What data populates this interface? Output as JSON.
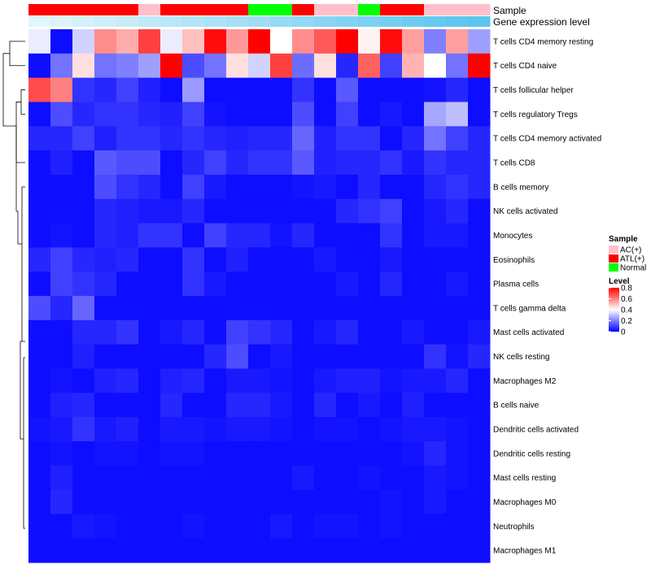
{
  "chart_data": {
    "type": "heatmap",
    "title": "",
    "annotation_rows": [
      "Sample",
      "Gene expression level"
    ],
    "rows": [
      "T cells CD4 memory resting",
      "T cells CD4 naive",
      "T cells follicular helper",
      "T cells regulatory  Tregs",
      "T cells CD4 memory activated",
      "T cells CD8",
      "B cells memory",
      "NK cells activated",
      "Monocytes",
      "Eosinophils",
      "Plasma cells",
      "T cells gamma delta",
      "Mast cells activated",
      "NK cells resting",
      "Macrophages M2",
      "B cells naive",
      "Dendritic cells activated",
      "Dendritic cells resting",
      "Mast cells resting",
      "Macrophages M0",
      "Neutrophils",
      "Macrophages M1"
    ],
    "sample_groups": [
      "ATL(+)",
      "ATL(+)",
      "ATL(+)",
      "ATL(+)",
      "ATL(+)",
      "AC(+)",
      "ATL(+)",
      "ATL(+)",
      "ATL(+)",
      "ATL(+)",
      "Normal",
      "Normal",
      "ATL(+)",
      "AC(+)",
      "AC(+)",
      "Normal",
      "ATL(+)",
      "ATL(+)",
      "AC(+)",
      "AC(+)",
      "AC(+)"
    ],
    "gene_expression_level": [
      0.02,
      0.07,
      0.12,
      0.17,
      0.22,
      0.27,
      0.32,
      0.37,
      0.42,
      0.47,
      0.52,
      0.57,
      0.62,
      0.67,
      0.72,
      0.77,
      0.82,
      0.87,
      0.92,
      0.96,
      1.0
    ],
    "values": [
      [
        0.37,
        0.02,
        0.33,
        0.58,
        0.53,
        0.7,
        0.37,
        0.5,
        0.78,
        0.56,
        0.8,
        0.4,
        0.58,
        0.66,
        0.8,
        0.42,
        0.78,
        0.55,
        0.2,
        0.55,
        0.25
      ],
      [
        0.02,
        0.18,
        0.45,
        0.18,
        0.2,
        0.25,
        0.8,
        0.12,
        0.18,
        0.45,
        0.33,
        0.7,
        0.17,
        0.45,
        0.06,
        0.65,
        0.1,
        0.52,
        0.4,
        0.18,
        0.8
      ],
      [
        0.68,
        0.6,
        0.08,
        0.06,
        0.1,
        0.05,
        0.02,
        0.24,
        0.02,
        0.02,
        0.02,
        0.02,
        0.08,
        0.02,
        0.14,
        0.02,
        0.02,
        0.02,
        0.03,
        0.06,
        0.02
      ],
      [
        0.02,
        0.12,
        0.06,
        0.08,
        0.08,
        0.06,
        0.05,
        0.1,
        0.03,
        0.02,
        0.02,
        0.02,
        0.12,
        0.02,
        0.1,
        0.02,
        0.04,
        0.02,
        0.26,
        0.3,
        0.02
      ],
      [
        0.06,
        0.06,
        0.1,
        0.05,
        0.08,
        0.08,
        0.06,
        0.08,
        0.06,
        0.05,
        0.06,
        0.06,
        0.16,
        0.05,
        0.08,
        0.08,
        0.02,
        0.06,
        0.18,
        0.1,
        0.06
      ],
      [
        0.02,
        0.05,
        0.02,
        0.14,
        0.12,
        0.12,
        0.02,
        0.06,
        0.1,
        0.06,
        0.08,
        0.08,
        0.14,
        0.05,
        0.06,
        0.06,
        0.08,
        0.04,
        0.08,
        0.06,
        0.06
      ],
      [
        0.02,
        0.02,
        0.02,
        0.12,
        0.08,
        0.06,
        0.02,
        0.1,
        0.04,
        0.02,
        0.02,
        0.02,
        0.03,
        0.04,
        0.02,
        0.06,
        0.02,
        0.02,
        0.06,
        0.08,
        0.06
      ],
      [
        0.02,
        0.02,
        0.02,
        0.06,
        0.05,
        0.04,
        0.04,
        0.06,
        0.02,
        0.02,
        0.02,
        0.02,
        0.02,
        0.02,
        0.06,
        0.08,
        0.1,
        0.02,
        0.04,
        0.06,
        0.02
      ],
      [
        0.02,
        0.03,
        0.02,
        0.06,
        0.05,
        0.08,
        0.08,
        0.02,
        0.1,
        0.06,
        0.06,
        0.03,
        0.06,
        0.02,
        0.02,
        0.02,
        0.08,
        0.02,
        0.04,
        0.04,
        0.02
      ],
      [
        0.06,
        0.1,
        0.06,
        0.05,
        0.06,
        0.02,
        0.02,
        0.08,
        0.02,
        0.05,
        0.02,
        0.02,
        0.02,
        0.04,
        0.02,
        0.02,
        0.04,
        0.02,
        0.02,
        0.02,
        0.02
      ],
      [
        0.02,
        0.1,
        0.08,
        0.06,
        0.02,
        0.02,
        0.02,
        0.08,
        0.04,
        0.02,
        0.02,
        0.02,
        0.02,
        0.02,
        0.04,
        0.02,
        0.06,
        0.02,
        0.02,
        0.04,
        0.02
      ],
      [
        0.12,
        0.06,
        0.16,
        0.02,
        0.02,
        0.02,
        0.02,
        0.02,
        0.02,
        0.02,
        0.02,
        0.02,
        0.02,
        0.02,
        0.02,
        0.02,
        0.02,
        0.02,
        0.02,
        0.02,
        0.02
      ],
      [
        0.02,
        0.02,
        0.06,
        0.06,
        0.08,
        0.02,
        0.04,
        0.06,
        0.02,
        0.1,
        0.08,
        0.06,
        0.02,
        0.04,
        0.06,
        0.02,
        0.02,
        0.04,
        0.02,
        0.02,
        0.04
      ],
      [
        0.02,
        0.02,
        0.05,
        0.02,
        0.02,
        0.02,
        0.02,
        0.02,
        0.06,
        0.12,
        0.02,
        0.04,
        0.02,
        0.02,
        0.02,
        0.02,
        0.02,
        0.02,
        0.08,
        0.03,
        0.06
      ],
      [
        0.02,
        0.03,
        0.02,
        0.05,
        0.06,
        0.02,
        0.05,
        0.06,
        0.02,
        0.04,
        0.04,
        0.03,
        0.02,
        0.04,
        0.05,
        0.05,
        0.03,
        0.04,
        0.04,
        0.06,
        0.02
      ],
      [
        0.02,
        0.05,
        0.06,
        0.02,
        0.02,
        0.02,
        0.06,
        0.02,
        0.02,
        0.06,
        0.06,
        0.04,
        0.02,
        0.06,
        0.02,
        0.04,
        0.02,
        0.05,
        0.02,
        0.02,
        0.02
      ],
      [
        0.03,
        0.04,
        0.08,
        0.04,
        0.05,
        0.02,
        0.04,
        0.04,
        0.03,
        0.04,
        0.04,
        0.03,
        0.02,
        0.03,
        0.03,
        0.02,
        0.03,
        0.04,
        0.04,
        0.03,
        0.02
      ],
      [
        0.02,
        0.03,
        0.02,
        0.03,
        0.03,
        0.02,
        0.03,
        0.03,
        0.02,
        0.02,
        0.02,
        0.02,
        0.02,
        0.02,
        0.02,
        0.02,
        0.02,
        0.03,
        0.06,
        0.03,
        0.02
      ],
      [
        0.02,
        0.05,
        0.02,
        0.02,
        0.02,
        0.02,
        0.02,
        0.02,
        0.02,
        0.02,
        0.02,
        0.02,
        0.04,
        0.02,
        0.02,
        0.03,
        0.02,
        0.02,
        0.04,
        0.03,
        0.02
      ],
      [
        0.02,
        0.06,
        0.02,
        0.02,
        0.02,
        0.02,
        0.02,
        0.02,
        0.02,
        0.02,
        0.02,
        0.02,
        0.02,
        0.02,
        0.02,
        0.02,
        0.03,
        0.02,
        0.04,
        0.02,
        0.02
      ],
      [
        0.02,
        0.02,
        0.04,
        0.03,
        0.02,
        0.02,
        0.02,
        0.03,
        0.02,
        0.02,
        0.02,
        0.04,
        0.02,
        0.03,
        0.03,
        0.02,
        0.03,
        0.02,
        0.02,
        0.02,
        0.02
      ],
      [
        0.02,
        0.02,
        0.02,
        0.02,
        0.02,
        0.02,
        0.02,
        0.02,
        0.02,
        0.02,
        0.02,
        0.02,
        0.02,
        0.02,
        0.02,
        0.02,
        0.02,
        0.02,
        0.02,
        0.02,
        0.02
      ]
    ],
    "legend_sample": {
      "title": "Sample",
      "entries": [
        {
          "label": "AC(+)",
          "color": "#ffc0cb"
        },
        {
          "label": "ATL(+)",
          "color": "#ff0000"
        },
        {
          "label": "Normal",
          "color": "#00ff00"
        }
      ]
    },
    "legend_level": {
      "title": "Level",
      "ticks": [
        "0.8",
        "0.6",
        "0.4",
        "0.2",
        "0"
      ],
      "tick_values": [
        0.8,
        0.6,
        0.4,
        0.2,
        0
      ],
      "range": [
        0,
        0.8
      ]
    },
    "colors": {
      "low": "#0000ff",
      "mid": "#ffffff",
      "high": "#ff0000",
      "expr_low": "#e6f7fb",
      "expr_high": "#5bc5ee"
    }
  }
}
